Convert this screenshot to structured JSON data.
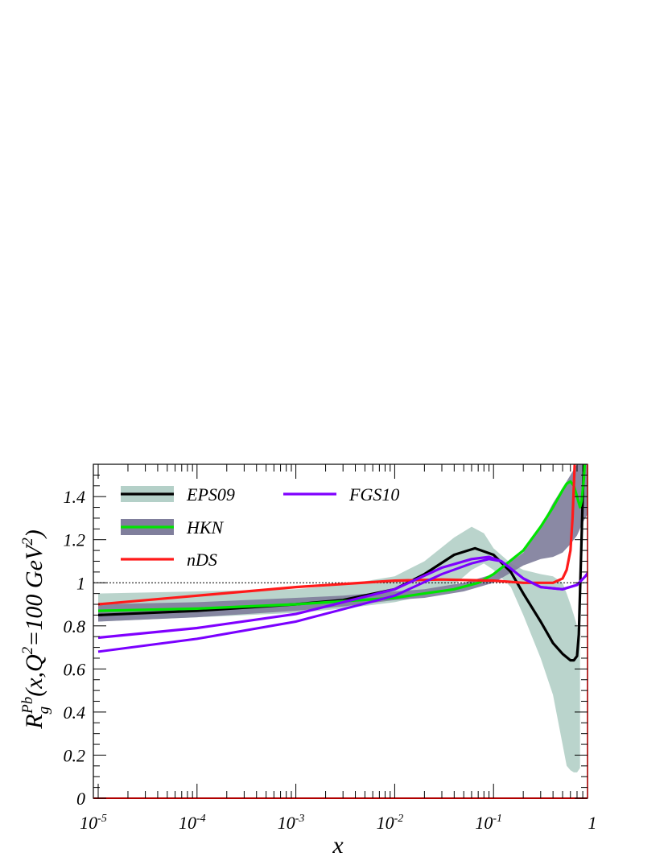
{
  "chart_data": {
    "type": "line",
    "xscale": "log",
    "xlim": [
      1e-05,
      1
    ],
    "ylim": [
      0,
      1.55
    ],
    "xlabel": "x",
    "ylabel": {
      "base": "R",
      "sub": "g",
      "sup": "Pb",
      "rest1": "(x,Q",
      "q_exp": "2",
      "rest2": "=100 GeV",
      "gev_exp": "2",
      "rest3": ")"
    },
    "x_ticks": [
      {
        "base": "10",
        "exp": "-5",
        "value": 1e-05
      },
      {
        "base": "10",
        "exp": "-4",
        "value": 0.0001
      },
      {
        "base": "10",
        "exp": "-3",
        "value": 0.001
      },
      {
        "base": "10",
        "exp": "-2",
        "value": 0.01
      },
      {
        "base": "10",
        "exp": "-1",
        "value": 0.1
      },
      {
        "base": "1",
        "exp": "",
        "value": 1
      }
    ],
    "y_ticks": [
      {
        "label": "0",
        "value": 0
      },
      {
        "label": "0.2",
        "value": 0.2
      },
      {
        "label": "0.4",
        "value": 0.4
      },
      {
        "label": "0.6",
        "value": 0.6
      },
      {
        "label": "0.8",
        "value": 0.8
      },
      {
        "label": "1",
        "value": 1.0
      },
      {
        "label": "1.2",
        "value": 1.2
      },
      {
        "label": "1.4",
        "value": 1.4
      }
    ],
    "reference_line": 1.0,
    "bands": [
      {
        "name": "EPS09",
        "color": "#b4d0c8",
        "x": [
          1e-05,
          0.0001,
          0.001,
          0.003,
          0.01,
          0.02,
          0.04,
          0.06,
          0.08,
          0.1,
          0.15,
          0.2,
          0.3,
          0.4,
          0.5,
          0.55,
          0.6,
          0.65,
          0.7,
          0.75
        ],
        "upper": [
          0.95,
          0.96,
          0.97,
          0.99,
          1.03,
          1.1,
          1.21,
          1.26,
          1.23,
          1.16,
          1.09,
          1.06,
          1.04,
          1.03,
          1.0,
          0.95,
          0.9,
          0.85,
          0.8,
          0.76
        ],
        "lower": [
          0.82,
          0.84,
          0.86,
          0.88,
          0.91,
          0.94,
          0.99,
          1.06,
          1.09,
          1.06,
          0.98,
          0.85,
          0.65,
          0.48,
          0.25,
          0.15,
          0.13,
          0.12,
          0.12,
          0.14
        ]
      },
      {
        "name": "HKN",
        "color": "#807f9c",
        "x": [
          1e-05,
          0.0001,
          0.001,
          0.003,
          0.01,
          0.02,
          0.05,
          0.1,
          0.2,
          0.3,
          0.4,
          0.5,
          0.6,
          0.7,
          0.8,
          0.9
        ],
        "upper": [
          0.9,
          0.91,
          0.93,
          0.94,
          0.96,
          0.97,
          1.0,
          1.04,
          1.14,
          1.26,
          1.37,
          1.44,
          1.5,
          1.55,
          1.55,
          1.55
        ],
        "lower": [
          0.82,
          0.84,
          0.87,
          0.89,
          0.92,
          0.93,
          0.96,
          1.0,
          1.08,
          1.11,
          1.12,
          1.14,
          1.18,
          1.22,
          1.28,
          1.32
        ]
      }
    ],
    "series": [
      {
        "name": "EPS09",
        "color": "#000000",
        "x": [
          1e-05,
          0.0001,
          0.001,
          0.003,
          0.01,
          0.02,
          0.04,
          0.065,
          0.1,
          0.15,
          0.2,
          0.3,
          0.4,
          0.5,
          0.6,
          0.65,
          0.7,
          0.73,
          0.76,
          0.8,
          0.83
        ],
        "y": [
          0.85,
          0.87,
          0.9,
          0.92,
          0.97,
          1.04,
          1.13,
          1.16,
          1.13,
          1.05,
          0.95,
          0.82,
          0.72,
          0.67,
          0.64,
          0.64,
          0.66,
          0.76,
          1.05,
          1.4,
          1.6
        ]
      },
      {
        "name": "HKN",
        "color": "#00e400",
        "x": [
          1e-05,
          0.0001,
          0.001,
          0.01,
          0.02,
          0.04,
          0.07,
          0.1,
          0.2,
          0.3,
          0.4,
          0.5,
          0.55,
          0.6,
          0.65,
          0.7,
          0.75,
          0.78,
          0.82,
          0.85
        ],
        "y": [
          0.87,
          0.88,
          0.9,
          0.93,
          0.95,
          0.97,
          1.0,
          1.04,
          1.15,
          1.26,
          1.35,
          1.43,
          1.46,
          1.47,
          1.45,
          1.4,
          1.35,
          1.38,
          1.48,
          1.6
        ]
      },
      {
        "name": "nDS",
        "color": "#ff1a1a",
        "x": [
          1e-05,
          0.0001,
          0.001,
          0.01,
          0.03,
          0.1,
          0.2,
          0.3,
          0.4,
          0.5,
          0.55,
          0.6,
          0.63,
          0.65,
          0.67
        ],
        "y": [
          0.9,
          0.94,
          0.98,
          1.01,
          1.015,
          1.01,
          1.0,
          1.0,
          1.0,
          1.02,
          1.06,
          1.15,
          1.3,
          1.45,
          1.6
        ]
      },
      {
        "name": "FGS10",
        "color": "#8000ff",
        "low_color": "#7a00ff",
        "x": [
          1e-05,
          0.0001,
          0.001,
          0.01,
          0.03,
          0.06,
          0.09,
          0.12,
          0.2,
          0.3,
          0.5,
          0.7,
          0.85,
          0.95
        ],
        "y": [
          0.745,
          0.79,
          0.855,
          0.97,
          1.07,
          1.11,
          1.12,
          1.1,
          1.02,
          0.98,
          0.97,
          0.99,
          1.03,
          1.06
        ],
        "y_lower": [
          0.68,
          0.74,
          0.82,
          0.94,
          1.04,
          1.09,
          1.11,
          1.1,
          1.02,
          0.98,
          0.97,
          0.99,
          1.03,
          1.06
        ]
      }
    ],
    "legend": [
      {
        "label": "EPS09",
        "band_color": "#b4d0c8",
        "line_color": "#000000"
      },
      {
        "label": "HKN",
        "band_color": "#807f9c",
        "line_color": "#00e400"
      },
      {
        "label": "nDS",
        "band_color": "",
        "line_color": "#ff1a1a"
      },
      {
        "label": "FGS10",
        "band_color": "",
        "line_color": "#8000ff"
      }
    ],
    "legend_placement": "top-left",
    "grid": false
  }
}
